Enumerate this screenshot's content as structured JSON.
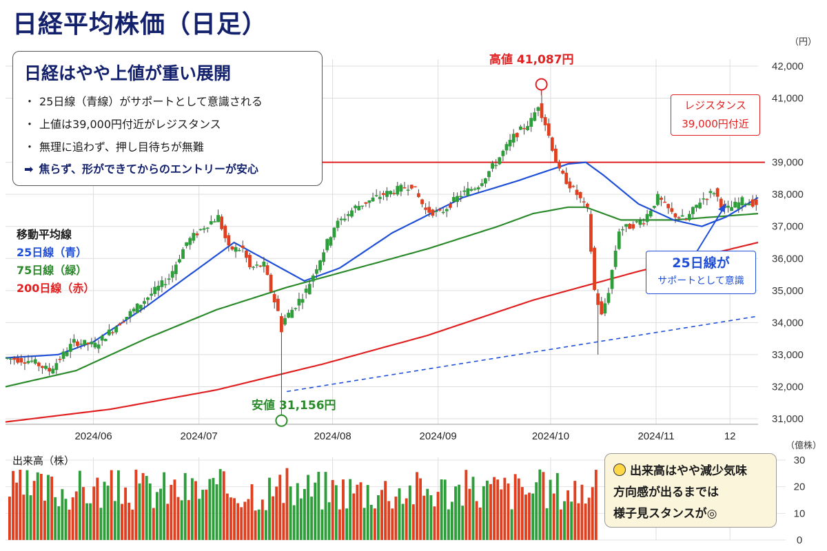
{
  "title": "日経平均株価（日足）",
  "summary_box": {
    "heading": "日経はやや上値が重い展開",
    "bullets": [
      "25日線（青線）がサポートとして意識される",
      "上値は39,000円付近がレジスタンス",
      "無理に追わず、押し目待ちが無難"
    ],
    "bullet_mark": "・",
    "conclusion": "焦らず、形ができてからのエントリーが安心",
    "arrow_icon": "right-arrow-icon"
  },
  "ma_legend": {
    "heading": "移動平均線",
    "ma25": "25日線（青）",
    "ma75": "75日線（緑）",
    "ma200": "200日線（赤）"
  },
  "annotations": {
    "high": "高値 41,087円",
    "low": "安値 31,156円",
    "resistance_line1": "レジスタンス",
    "resistance_line2": "39,000円付近",
    "support_line1": "25日線が",
    "support_line2": "サポートとして意識"
  },
  "volume_note": {
    "icon": "lightbulb-icon",
    "lines": [
      "出来高はやや減少気味",
      "方向感が出るまでは",
      "様子見スタンスが◎"
    ]
  },
  "colors": {
    "title": "#13206b",
    "up": "#2e9e3a",
    "down": "#e04020",
    "ma25": "#1f4fd8",
    "ma75": "#2a8a2a",
    "ma200": "#e02020",
    "resistance": "#e02020",
    "trendline": "#1f4fd8"
  },
  "chart_data": {
    "type": "candlestick",
    "price_unit": "（円）",
    "volume_label": "出来高（株）",
    "volume_unit": "（億株）",
    "ylim": [
      31000,
      42000
    ],
    "yticks": [
      "31,000",
      "32,000",
      "33,000",
      "34,000",
      "35,000",
      "36,000",
      "37,000",
      "38,000",
      "39,000",
      "41,000",
      "42,000"
    ],
    "ytick_values": [
      31000,
      32000,
      33000,
      34000,
      35000,
      36000,
      37000,
      38000,
      39000,
      41000,
      42000
    ],
    "volume_ylim": [
      0,
      30
    ],
    "volume_yticks": [
      "0",
      "10",
      "20",
      "30"
    ],
    "xtick_labels": [
      "2024/06",
      "2024/07",
      "2024/08",
      "2024/09",
      "2024/10",
      "2024/11",
      "12"
    ],
    "xtick_day_index": [
      25,
      55,
      93,
      123,
      155,
      185,
      206
    ],
    "day_count": 214,
    "resistance_level": 39000,
    "high": 41087,
    "low": 31156,
    "close_path": [
      [
        0,
        32900
      ],
      [
        8,
        32800
      ],
      [
        13,
        32500
      ],
      [
        20,
        33400
      ],
      [
        26,
        33300
      ],
      [
        32,
        33900
      ],
      [
        40,
        34700
      ],
      [
        47,
        35400
      ],
      [
        52,
        36500
      ],
      [
        57,
        37000
      ],
      [
        61,
        37300
      ],
      [
        64,
        36300
      ],
      [
        68,
        36300
      ],
      [
        70,
        35700
      ],
      [
        74,
        35800
      ],
      [
        76,
        35000
      ],
      [
        79,
        34000
      ],
      [
        82,
        34400
      ],
      [
        86,
        35000
      ],
      [
        90,
        36000
      ],
      [
        94,
        37000
      ],
      [
        100,
        37600
      ],
      [
        108,
        38000
      ],
      [
        116,
        38300
      ],
      [
        120,
        37500
      ],
      [
        124,
        37400
      ],
      [
        130,
        38000
      ],
      [
        135,
        38300
      ],
      [
        140,
        39000
      ],
      [
        145,
        39800
      ],
      [
        150,
        40300
      ],
      [
        152,
        40800
      ],
      [
        154,
        40200
      ],
      [
        158,
        38700
      ],
      [
        163,
        38000
      ],
      [
        166,
        37500
      ],
      [
        168,
        35000
      ],
      [
        170,
        34200
      ],
      [
        172,
        35000
      ],
      [
        175,
        36900
      ],
      [
        178,
        37000
      ],
      [
        182,
        37200
      ],
      [
        186,
        37900
      ],
      [
        190,
        37400
      ],
      [
        194,
        37200
      ],
      [
        198,
        37800
      ],
      [
        202,
        38100
      ],
      [
        205,
        37500
      ],
      [
        207,
        37600
      ],
      [
        210,
        37800
      ],
      [
        214,
        37700
      ]
    ],
    "candles_spec": "daily OHLC synthesized along close_path",
    "ma25": [
      [
        0,
        32900
      ],
      [
        15,
        33000
      ],
      [
        25,
        33400
      ],
      [
        40,
        34500
      ],
      [
        55,
        35700
      ],
      [
        65,
        36500
      ],
      [
        75,
        35900
      ],
      [
        85,
        35300
      ],
      [
        95,
        35700
      ],
      [
        110,
        36800
      ],
      [
        130,
        37900
      ],
      [
        145,
        38400
      ],
      [
        160,
        38950
      ],
      [
        165,
        39000
      ],
      [
        170,
        38600
      ],
      [
        180,
        37700
      ],
      [
        190,
        37200
      ],
      [
        198,
        37000
      ],
      [
        205,
        37300
      ],
      [
        214,
        37900
      ]
    ],
    "ma75": [
      [
        0,
        32000
      ],
      [
        20,
        32500
      ],
      [
        40,
        33500
      ],
      [
        60,
        34400
      ],
      [
        80,
        35100
      ],
      [
        100,
        35700
      ],
      [
        120,
        36300
      ],
      [
        140,
        37000
      ],
      [
        150,
        37400
      ],
      [
        160,
        37600
      ],
      [
        165,
        37600
      ],
      [
        175,
        37200
      ],
      [
        190,
        37200
      ],
      [
        214,
        37400
      ]
    ],
    "ma200": [
      [
        0,
        30900
      ],
      [
        30,
        31300
      ],
      [
        60,
        31900
      ],
      [
        90,
        32700
      ],
      [
        120,
        33600
      ],
      [
        150,
        34700
      ],
      [
        180,
        35600
      ],
      [
        214,
        36500
      ]
    ],
    "trendline": [
      [
        80,
        31850
      ],
      [
        214,
        34200
      ]
    ],
    "volume": {
      "count": 168,
      "range": [
        11,
        27
      ]
    }
  }
}
